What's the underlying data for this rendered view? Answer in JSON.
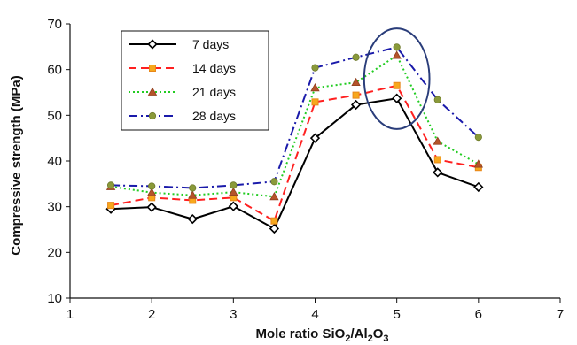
{
  "chart_data": {
    "type": "line",
    "title": "",
    "xlabel": "Mole ratio SiO2/Al2O3",
    "xlabel_parts": {
      "p1": "Mole ratio SiO",
      "s1": "2",
      "p2": "/Al",
      "s2": "2",
      "p3": "O",
      "s3": "3"
    },
    "ylabel": "Compressive strength (MPa)",
    "xlim": [
      1,
      7
    ],
    "ylim": [
      10,
      70
    ],
    "xticks": [
      1,
      2,
      3,
      4,
      5,
      6,
      7
    ],
    "yticks": [
      10,
      20,
      30,
      40,
      50,
      60,
      70
    ],
    "grid": false,
    "legend_position": "top-left",
    "x": [
      1.5,
      2,
      2.5,
      3,
      3.5,
      4,
      4.5,
      5,
      5.5,
      6
    ],
    "series": [
      {
        "name": "7 days",
        "color": "#000000",
        "dash": "solid",
        "marker": "diamond",
        "values": [
          29.5,
          29.9,
          27.3,
          30.1,
          25.2,
          45.0,
          52.3,
          53.7,
          37.5,
          34.3
        ]
      },
      {
        "name": "14 days",
        "color": "#ff2020",
        "dash": "dashed",
        "marker": "square",
        "values": [
          30.3,
          32.0,
          31.4,
          32.0,
          26.9,
          52.9,
          54.4,
          56.5,
          40.3,
          38.6
        ]
      },
      {
        "name": "21 days",
        "color": "#22cc22",
        "dash": "dotted",
        "marker": "triangle",
        "values": [
          34.4,
          33.1,
          32.5,
          33.2,
          32.2,
          56.0,
          57.2,
          63.1,
          44.3,
          39.3
        ]
      },
      {
        "name": "28 days",
        "color": "#1a1aaa",
        "dash": "dash-dot",
        "marker": "circle",
        "values": [
          34.7,
          34.5,
          34.1,
          34.7,
          35.5,
          60.4,
          62.7,
          64.9,
          53.4,
          45.2
        ]
      }
    ],
    "annotations": [
      {
        "type": "ellipse",
        "cx": 5,
        "cy": 58,
        "rx": 0.4,
        "ry": 11,
        "color": "#2a3d7a"
      }
    ]
  }
}
